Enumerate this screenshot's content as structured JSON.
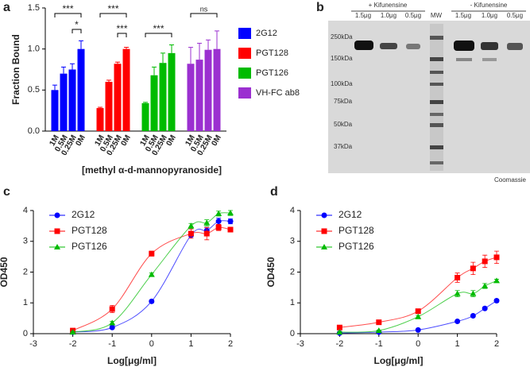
{
  "chart_data": [
    {
      "type": "bar",
      "panel": "a",
      "ylabel": "Fraction Bound",
      "xlabel": "[methyl α-d-mannopyranoside]",
      "categories": [
        "1M",
        "0.5M",
        "0.25M",
        "0M"
      ],
      "series": [
        {
          "name": "2G12",
          "color": "#0000ff",
          "values": [
            0.5,
            0.7,
            0.75,
            1.0
          ],
          "errors": [
            0.06,
            0.08,
            0.07,
            0.1
          ]
        },
        {
          "name": "PGT128",
          "color": "#ff0000",
          "values": [
            0.28,
            0.6,
            0.82,
            1.0
          ],
          "errors": [
            0.01,
            0.02,
            0.02,
            0.02
          ]
        },
        {
          "name": "PGT126",
          "color": "#00bb00",
          "values": [
            0.34,
            0.68,
            0.83,
            0.95
          ],
          "errors": [
            0.01,
            0.1,
            0.12,
            0.1
          ]
        },
        {
          "name": "VH-FC ab8",
          "color": "#9b30d0",
          "values": [
            0.82,
            0.87,
            0.99,
            1.0
          ],
          "errors": [
            0.2,
            0.2,
            0.12,
            0.22
          ]
        }
      ],
      "annotations": [
        "***",
        "*",
        "***",
        "***",
        "***",
        "ns"
      ],
      "ylim": [
        0,
        1.5
      ],
      "yticks": [
        {
          "value": 0,
          "label": "0.0"
        },
        0.5,
        {
          "value": 1,
          "label": "1.0"
        },
        1.5
      ],
      "legend": "right"
    },
    {
      "type": "scatter",
      "panel": "c",
      "ylabel": "OD450",
      "xlabel": "Log[μg/ml]",
      "x": [
        -2,
        -1,
        0,
        1,
        1.4,
        1.7,
        2
      ],
      "series": [
        {
          "name": "2G12",
          "color": "#0000ff",
          "marker": "circle",
          "values": [
            0.05,
            0.2,
            1.05,
            3.2,
            3.35,
            3.65,
            3.65
          ],
          "errors": [
            0.02,
            0.03,
            0.05,
            0.05,
            0.1,
            0.1,
            0.08
          ]
        },
        {
          "name": "PGT128",
          "color": "#ff0000",
          "marker": "square",
          "values": [
            0.1,
            0.8,
            2.6,
            3.25,
            3.25,
            3.45,
            3.38
          ],
          "errors": [
            0.03,
            0.12,
            0.08,
            0.15,
            0.2,
            0.1,
            0.08
          ]
        },
        {
          "name": "PGT126",
          "color": "#00bb00",
          "marker": "triangle",
          "values": [
            0.05,
            0.35,
            1.92,
            3.5,
            3.6,
            3.9,
            3.92
          ],
          "errors": [
            0.02,
            0.05,
            0.05,
            0.08,
            0.1,
            0.08,
            0.08
          ]
        }
      ],
      "xlim": [
        -3,
        2
      ],
      "xticks": [
        -3,
        -2,
        -1,
        0,
        1,
        2
      ],
      "ylim": [
        0,
        4
      ],
      "yticks": [
        0,
        1,
        2,
        3,
        4
      ],
      "legend": "upper left"
    },
    {
      "type": "scatter",
      "panel": "d",
      "ylabel": "OD450",
      "xlabel": "Log[μg/ml]",
      "x": [
        -2,
        -1,
        0,
        1,
        1.4,
        1.7,
        2
      ],
      "series": [
        {
          "name": "2G12",
          "color": "#0000ff",
          "marker": "circle",
          "values": [
            0.02,
            0.05,
            0.12,
            0.4,
            0.58,
            0.82,
            1.07
          ],
          "errors": [
            0.01,
            0.01,
            0.02,
            0.03,
            0.03,
            0.04,
            0.05
          ]
        },
        {
          "name": "PGT128",
          "color": "#ff0000",
          "marker": "square",
          "values": [
            0.2,
            0.37,
            0.73,
            1.82,
            2.12,
            2.35,
            2.48
          ],
          "errors": [
            0.05,
            0.05,
            0.05,
            0.15,
            0.2,
            0.2,
            0.2
          ]
        },
        {
          "name": "PGT126",
          "color": "#00bb00",
          "marker": "triangle",
          "values": [
            0.05,
            0.1,
            0.55,
            1.3,
            1.3,
            1.55,
            1.72
          ],
          "errors": [
            0.02,
            0.02,
            0.04,
            0.1,
            0.1,
            0.08,
            0.05
          ]
        }
      ],
      "xlim": [
        -3,
        2
      ],
      "xticks": [
        -3,
        -2,
        -1,
        0,
        1,
        2
      ],
      "ylim": [
        0,
        4
      ],
      "yticks": [
        0,
        1,
        2,
        3,
        4
      ],
      "legend": "upper left"
    }
  ],
  "gel": {
    "panel": "b",
    "groups": [
      "+ Kifunensine",
      "- Kifunensine"
    ],
    "lanes": [
      "1.5μg",
      "1.0μg",
      "0.5μg",
      "MW",
      "1.5μg",
      "1.0μg",
      "0.5μg"
    ],
    "markers": [
      "250kDa",
      "150kDa",
      "100kDa",
      "75kDa",
      "50kDa",
      "37kDa"
    ],
    "stain": "Coomassie"
  }
}
